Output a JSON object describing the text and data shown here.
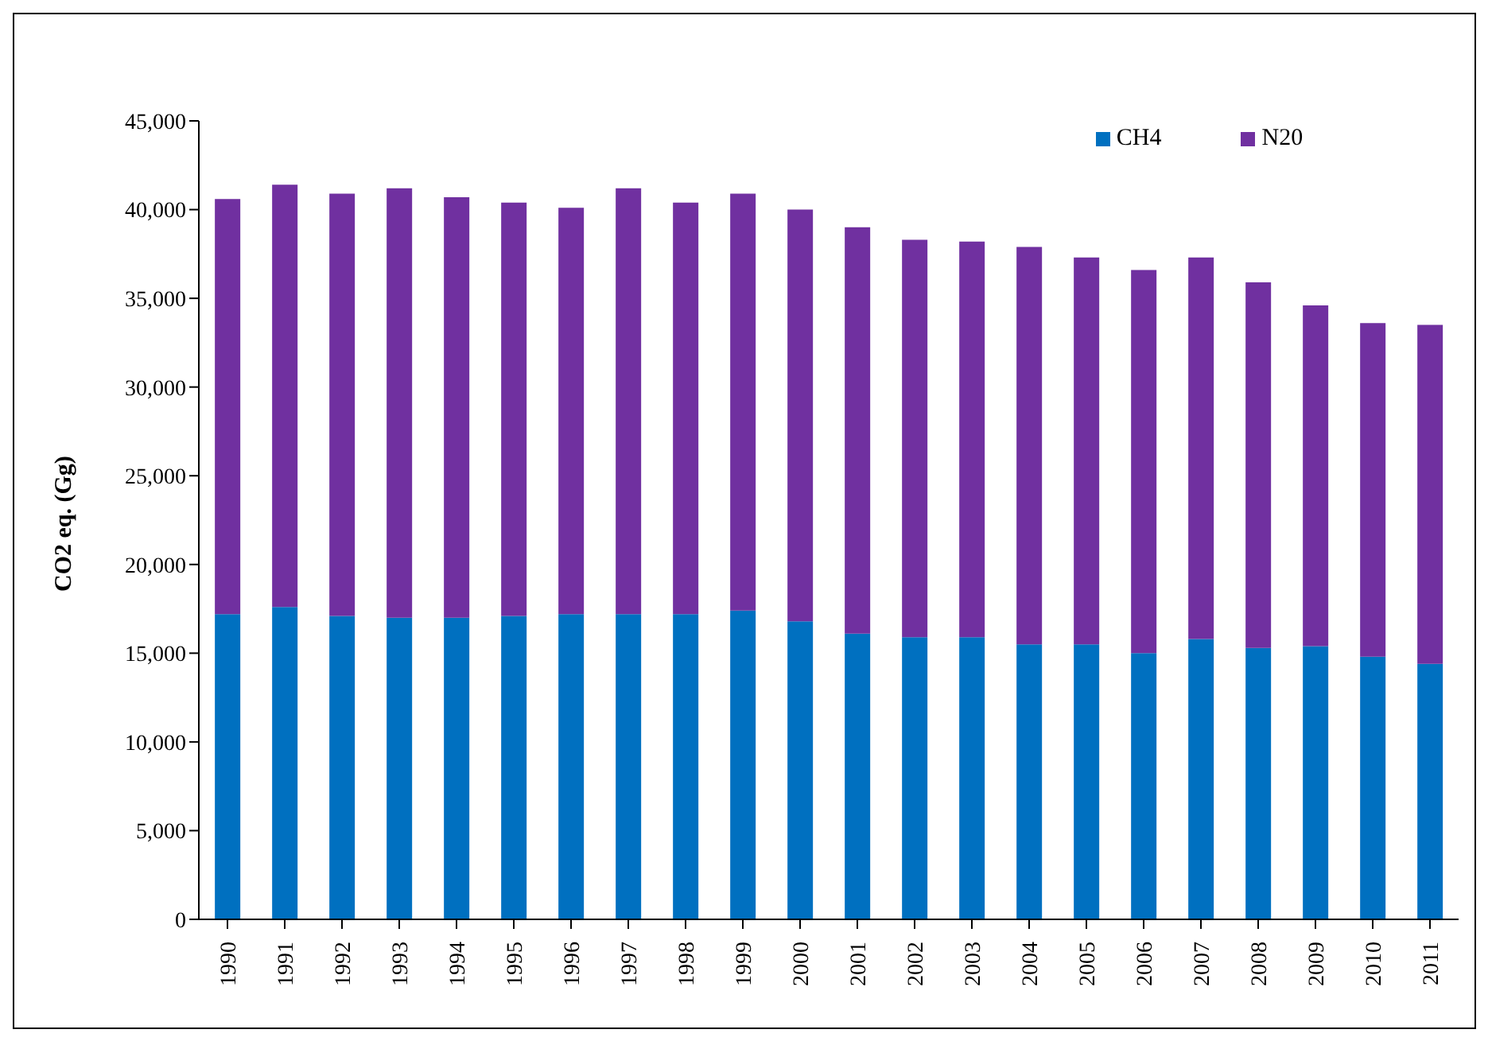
{
  "chart_data": {
    "type": "bar",
    "stacked": true,
    "ylabel": "CO2 eq. (Gg)",
    "categories": [
      "1990",
      "1991",
      "1992",
      "1993",
      "1994",
      "1995",
      "1996",
      "1997",
      "1998",
      "1999",
      "2000",
      "2001",
      "2002",
      "2003",
      "2004",
      "2005",
      "2006",
      "2007",
      "2008",
      "2009",
      "2010",
      "2011"
    ],
    "series": [
      {
        "name": "CH4",
        "color": "#0070c0",
        "values": [
          17200,
          17600,
          17100,
          17000,
          17000,
          17100,
          17200,
          17200,
          17200,
          17400,
          16800,
          16100,
          15900,
          15900,
          15500,
          15500,
          15000,
          15800,
          15300,
          15400,
          14800,
          14400
        ]
      },
      {
        "name": "N20",
        "color": "#7030a0",
        "values": [
          23400,
          23800,
          23800,
          24200,
          23700,
          23300,
          22900,
          24000,
          23200,
          23500,
          23200,
          22900,
          22400,
          22300,
          22400,
          21800,
          21600,
          21500,
          20600,
          19200,
          18800,
          19100
        ]
      }
    ],
    "ylim": [
      0,
      45000
    ],
    "yticks": [
      0,
      {
        "value": 5000,
        "label": "5,000"
      },
      {
        "value": 10000,
        "label": "10,000"
      },
      {
        "value": 15000,
        "label": "15,000"
      },
      {
        "value": 20000,
        "label": "20,000"
      },
      {
        "value": 25000,
        "label": "25,000"
      },
      {
        "value": 30000,
        "label": "30,000"
      },
      {
        "value": 35000,
        "label": "35,000"
      },
      {
        "value": 40000,
        "label": "40,000"
      },
      {
        "value": 45000,
        "label": "45,000"
      }
    ],
    "grid": false,
    "legend": "top right"
  }
}
